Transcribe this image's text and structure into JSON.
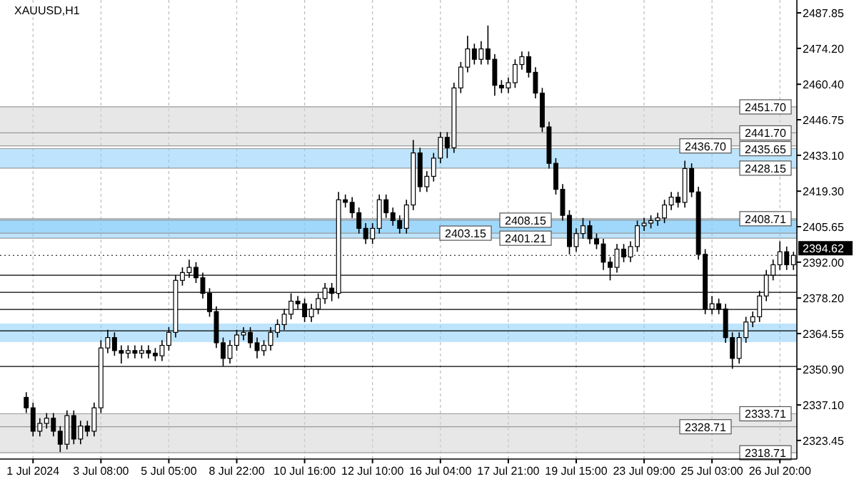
{
  "chart_data": {
    "type": "candlestick",
    "title": "XAUUSD,H1",
    "categories": [
      null,
      "1 Jul 2024",
      null,
      null,
      null,
      null,
      null,
      null,
      null,
      null,
      null,
      "3 Jul 08:00",
      null,
      null,
      null,
      null,
      null,
      null,
      null,
      null,
      null,
      "5 Jul 05:00",
      null,
      null,
      null,
      null,
      null,
      null,
      null,
      null,
      null,
      "8 Jul 22:00",
      null,
      null,
      null,
      null,
      null,
      null,
      null,
      null,
      null,
      "10 Jul 16:00",
      null,
      null,
      null,
      null,
      null,
      null,
      null,
      null,
      null,
      "12 Jul 10:00",
      null,
      null,
      null,
      null,
      null,
      null,
      null,
      null,
      null,
      "16 Jul 04:00",
      null,
      null,
      null,
      null,
      null,
      null,
      null,
      null,
      null,
      "17 Jul 21:00",
      null,
      null,
      null,
      null,
      null,
      null,
      null,
      null,
      null,
      "19 Jul 15:00",
      null,
      null,
      null,
      null,
      null,
      null,
      null,
      null,
      null,
      "23 Jul 09:00",
      null,
      null,
      null,
      null,
      null,
      null,
      null,
      null,
      null,
      "25 Jul 03:00",
      null,
      null,
      null,
      null,
      null,
      null,
      null,
      null,
      null,
      "26 Jul 20:00",
      null,
      null
    ],
    "ohlc": [
      [
        2340,
        2342,
        2334,
        2336
      ],
      [
        2336,
        2338,
        2325,
        2327
      ],
      [
        2327,
        2332,
        2325,
        2330
      ],
      [
        2330,
        2334,
        2328,
        2332
      ],
      [
        2332,
        2334,
        2325,
        2327
      ],
      [
        2327,
        2329,
        2319,
        2322
      ],
      [
        2322,
        2335,
        2320,
        2333
      ],
      [
        2333,
        2335,
        2322,
        2324
      ],
      [
        2324,
        2331,
        2322,
        2329
      ],
      [
        2329,
        2331,
        2325,
        2327
      ],
      [
        2327,
        2338,
        2325,
        2336
      ],
      [
        2336,
        2362,
        2334,
        2359
      ],
      [
        2359,
        2366,
        2357,
        2363
      ],
      [
        2363,
        2365,
        2356,
        2358
      ],
      [
        2358,
        2360,
        2353,
        2357
      ],
      [
        2357,
        2360,
        2355,
        2358
      ],
      [
        2358,
        2360,
        2355,
        2357
      ],
      [
        2357,
        2360,
        2355,
        2358
      ],
      [
        2358,
        2360,
        2355,
        2357
      ],
      [
        2357,
        2359,
        2354,
        2356
      ],
      [
        2356,
        2362,
        2354,
        2360
      ],
      [
        2360,
        2367,
        2358,
        2365
      ],
      [
        2365,
        2387,
        2363,
        2385
      ],
      [
        2385,
        2390,
        2383,
        2388
      ],
      [
        2388,
        2393,
        2386,
        2390
      ],
      [
        2390,
        2392,
        2384,
        2386
      ],
      [
        2386,
        2388,
        2378,
        2380
      ],
      [
        2380,
        2382,
        2371,
        2373
      ],
      [
        2373,
        2375,
        2359,
        2361
      ],
      [
        2361,
        2363,
        2352,
        2355
      ],
      [
        2355,
        2362,
        2353,
        2360
      ],
      [
        2360,
        2366,
        2358,
        2364
      ],
      [
        2364,
        2367,
        2362,
        2365
      ],
      [
        2365,
        2367,
        2359,
        2361
      ],
      [
        2361,
        2363,
        2355,
        2358
      ],
      [
        2358,
        2362,
        2356,
        2360
      ],
      [
        2360,
        2367,
        2358,
        2365
      ],
      [
        2365,
        2370,
        2363,
        2368
      ],
      [
        2368,
        2374,
        2366,
        2372
      ],
      [
        2372,
        2380,
        2370,
        2377
      ],
      [
        2377,
        2379,
        2374,
        2376
      ],
      [
        2376,
        2378,
        2369,
        2371
      ],
      [
        2371,
        2376,
        2369,
        2374
      ],
      [
        2374,
        2380,
        2372,
        2378
      ],
      [
        2378,
        2384,
        2376,
        2382
      ],
      [
        2382,
        2384,
        2377,
        2380
      ],
      [
        2380,
        2419,
        2378,
        2416
      ],
      [
        2416,
        2418,
        2413,
        2415
      ],
      [
        2415,
        2417,
        2409,
        2411
      ],
      [
        2411,
        2413,
        2403,
        2405
      ],
      [
        2405,
        2407,
        2399,
        2401
      ],
      [
        2401,
        2407,
        2399,
        2405
      ],
      [
        2405,
        2418,
        2403,
        2416
      ],
      [
        2416,
        2418,
        2409,
        2411
      ],
      [
        2411,
        2413,
        2406,
        2408
      ],
      [
        2408,
        2410,
        2403,
        2405
      ],
      [
        2405,
        2416,
        2403,
        2414
      ],
      [
        2414,
        2439,
        2412,
        2434
      ],
      [
        2434,
        2436,
        2419,
        2421
      ],
      [
        2421,
        2427,
        2419,
        2425
      ],
      [
        2425,
        2434,
        2423,
        2432
      ],
      [
        2432,
        2442,
        2430,
        2440
      ],
      [
        2440,
        2442,
        2432,
        2436
      ],
      [
        2436,
        2461,
        2434,
        2459
      ],
      [
        2459,
        2469,
        2457,
        2467
      ],
      [
        2467,
        2479,
        2465,
        2474
      ],
      [
        2474,
        2476,
        2468,
        2470
      ],
      [
        2470,
        2477,
        2468,
        2474
      ],
      [
        2474,
        2483,
        2468,
        2470
      ],
      [
        2470,
        2472,
        2456,
        2460
      ],
      [
        2460,
        2462,
        2457,
        2459
      ],
      [
        2459,
        2463,
        2457,
        2461
      ],
      [
        2461,
        2470,
        2459,
        2468
      ],
      [
        2468,
        2473,
        2466,
        2471
      ],
      [
        2471,
        2473,
        2463,
        2465
      ],
      [
        2465,
        2467,
        2455,
        2457
      ],
      [
        2457,
        2459,
        2442,
        2444
      ],
      [
        2444,
        2446,
        2428,
        2430
      ],
      [
        2430,
        2432,
        2418,
        2420
      ],
      [
        2420,
        2422,
        2408,
        2410
      ],
      [
        2410,
        2412,
        2395,
        2398
      ],
      [
        2398,
        2405,
        2396,
        2403
      ],
      [
        2403,
        2409,
        2401,
        2406
      ],
      [
        2406,
        2408,
        2399,
        2401
      ],
      [
        2401,
        2403,
        2397,
        2399
      ],
      [
        2399,
        2401,
        2389,
        2392
      ],
      [
        2392,
        2394,
        2385,
        2390
      ],
      [
        2390,
        2399,
        2388,
        2397
      ],
      [
        2397,
        2399,
        2392,
        2394
      ],
      [
        2394,
        2400,
        2392,
        2398
      ],
      [
        2398,
        2408,
        2396,
        2406
      ],
      [
        2406,
        2409,
        2404,
        2407
      ],
      [
        2407,
        2410,
        2405,
        2408
      ],
      [
        2408,
        2411,
        2406,
        2409
      ],
      [
        2409,
        2416,
        2407,
        2414
      ],
      [
        2414,
        2419,
        2412,
        2417
      ],
      [
        2417,
        2419,
        2413,
        2415
      ],
      [
        2415,
        2431,
        2413,
        2428
      ],
      [
        2428,
        2430,
        2417,
        2419
      ],
      [
        2419,
        2421,
        2393,
        2395
      ],
      [
        2395,
        2397,
        2372,
        2374
      ],
      [
        2374,
        2379,
        2372,
        2376
      ],
      [
        2376,
        2378,
        2372,
        2374
      ],
      [
        2374,
        2376,
        2361,
        2363
      ],
      [
        2363,
        2365,
        2351,
        2355
      ],
      [
        2355,
        2365,
        2353,
        2363
      ],
      [
        2363,
        2371,
        2361,
        2369
      ],
      [
        2369,
        2373,
        2367,
        2371
      ],
      [
        2371,
        2381,
        2369,
        2379
      ],
      [
        2379,
        2389,
        2377,
        2387
      ],
      [
        2387,
        2393,
        2385,
        2391
      ],
      [
        2391,
        2400,
        2389,
        2396
      ],
      [
        2396,
        2398,
        2389,
        2391
      ],
      [
        2391,
        2396,
        2389,
        2394.62
      ]
    ],
    "ylim": [
      2316.3,
      2492.8
    ],
    "yticks": [
      2487.85,
      {
        "value": 2474.2,
        "label": "2474.20"
      },
      {
        "value": 2460.4,
        "label": "2460.40"
      },
      2446.75,
      {
        "value": 2433.1,
        "label": "2433.10"
      },
      {
        "value": 2419.3,
        "label": "2419.30"
      },
      2405.65,
      {
        "value": 2392,
        "label": "2392.00"
      },
      {
        "value": 2378.2,
        "label": "2378.20"
      },
      2364.55,
      {
        "value": 2350.9,
        "label": "2350.90"
      },
      {
        "value": 2337.1,
        "label": "2337.10"
      },
      2323.45
    ],
    "grid": "x",
    "bands": [
      {
        "axis": "y",
        "from": 2436.7,
        "to": 2451.7,
        "color": "#d3d3d3"
      },
      {
        "axis": "y",
        "from": 2401.21,
        "to": 2408.71,
        "color": "#87cefa"
      },
      {
        "axis": "y",
        "from": 2428.15,
        "to": 2435.65,
        "color": "#87cefa"
      },
      {
        "axis": "y",
        "from": 2403.15,
        "to": 2408.15,
        "color": "#87cefa"
      },
      {
        "axis": "y",
        "from": 2318.71,
        "to": 2333.71,
        "color": "#d3d3d3"
      },
      {
        "axis": "y",
        "from": 2361.3,
        "to": 2368.4,
        "color": "#87cefa"
      }
    ],
    "ref_lines": [
      {
        "axis": "y",
        "value": 2451.7,
        "label": "2451.70"
      },
      {
        "axis": "y",
        "value": 2441.7,
        "label": "2441.70"
      },
      {
        "axis": "y",
        "value": 2436.7,
        "label": "2436.70"
      },
      {
        "axis": "y",
        "value": 2408.71,
        "label": "2408.71"
      },
      {
        "axis": "y",
        "value": 2401.21,
        "label": "2401.21"
      },
      {
        "axis": "y",
        "value": 2435.65,
        "label": "2435.65"
      },
      {
        "axis": "y",
        "value": 2428.15,
        "label": "2428.15"
      },
      {
        "axis": "y",
        "value": 2408.15,
        "label": "2408.15"
      },
      {
        "axis": "y",
        "value": 2403.15,
        "label": "2403.15"
      },
      {
        "axis": "y",
        "value": 2333.71,
        "label": "2333.71"
      },
      {
        "axis": "y",
        "value": 2328.71,
        "label": "2328.71"
      },
      {
        "axis": "y",
        "value": 2318.71,
        "label": "2318.71"
      },
      {
        "axis": "y",
        "value": 2387.0,
        "color": "#000000"
      },
      {
        "axis": "y",
        "value": 2380.4,
        "color": "#000000"
      },
      {
        "axis": "y",
        "value": 2373.8,
        "color": "#000000"
      },
      {
        "axis": "y",
        "value": 2365.6,
        "color": "#000000"
      },
      {
        "axis": "y",
        "value": 2351.9,
        "color": "#000000"
      },
      {
        "axis": "y",
        "value": 2394.62,
        "label": "2394.62",
        "color": "#000000",
        "line_style": "dotted"
      }
    ]
  }
}
